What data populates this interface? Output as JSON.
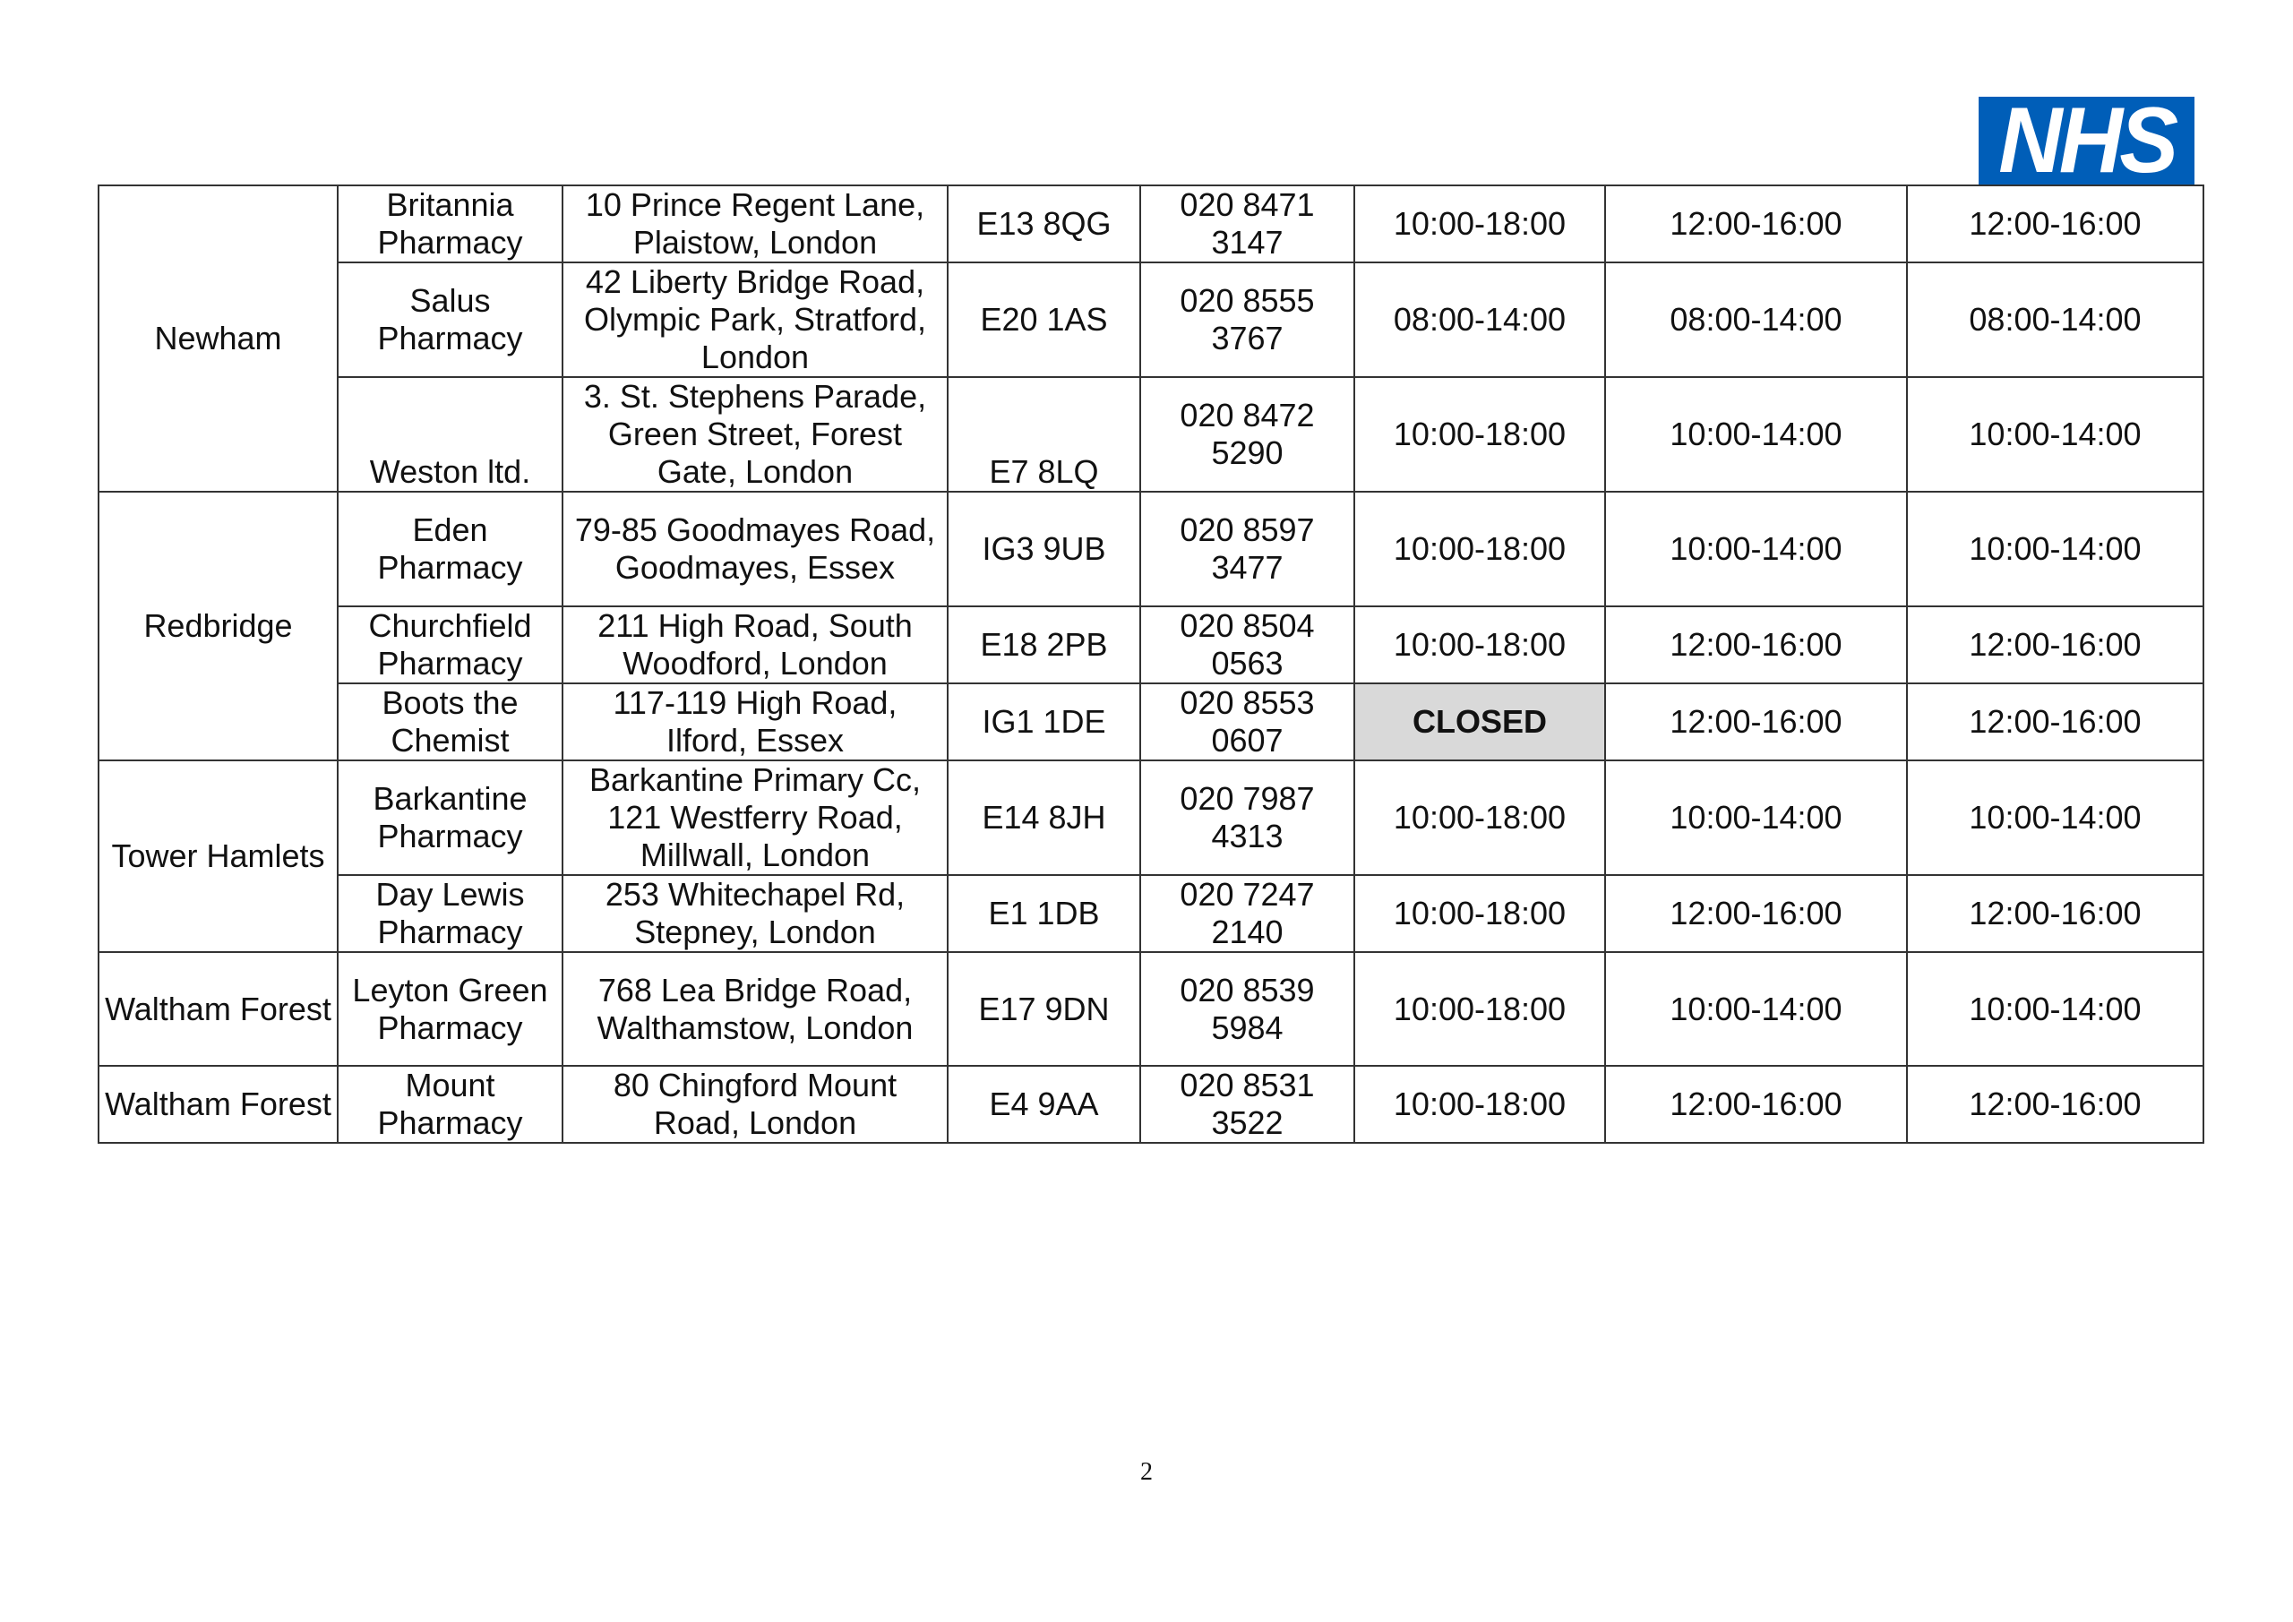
{
  "logo": {
    "text": "NHS",
    "color": "#005EB8"
  },
  "rows": [
    {
      "borough": "Newham",
      "name": "Britannia Pharmacy",
      "address": "10 Prince Regent Lane, Plaistow, London",
      "postcode": "E13 8QG",
      "phone": "020 8471 3147",
      "h1": "10:00-18:00",
      "h2": "12:00-16:00",
      "h3": "12:00-16:00"
    },
    {
      "name": "Salus Pharmacy",
      "address": "42 Liberty Bridge Road, Olympic Park, Stratford, London",
      "postcode": "E20 1AS",
      "phone": "020 8555 3767",
      "h1": "08:00-14:00",
      "h2": "08:00-14:00",
      "h3": "08:00-14:00"
    },
    {
      "name": "Weston ltd.",
      "address": "3. St. Stephens Parade, Green Street, Forest Gate, London",
      "postcode": "E7 8LQ",
      "phone": "020 8472 5290",
      "h1": "10:00-18:00",
      "h2": "10:00-14:00",
      "h3": "10:00-14:00"
    },
    {
      "borough": "Redbridge",
      "name": "Eden Pharmacy",
      "address": "79-85 Goodmayes Road, Goodmayes, Essex",
      "postcode": "IG3 9UB",
      "phone": "020 8597 3477",
      "h1": "10:00-18:00",
      "h2": "10:00-14:00",
      "h3": "10:00-14:00"
    },
    {
      "name": "Churchfield Pharmacy",
      "address": "211 High Road, South Woodford, London",
      "postcode": "E18 2PB",
      "phone": "020 8504 0563",
      "h1": "10:00-18:00",
      "h2": "12:00-16:00",
      "h3": "12:00-16:00"
    },
    {
      "name": "Boots the Chemist",
      "address": "117-119 High Road, Ilford, Essex",
      "postcode": "IG1 1DE",
      "phone": "020 8553 0607",
      "h1": "CLOSED",
      "h2": "12:00-16:00",
      "h3": "12:00-16:00"
    },
    {
      "borough": "Tower Hamlets",
      "name": "Barkantine Pharmacy",
      "address": "Barkantine Primary Cc, 121 Westferry Road, Millwall, London",
      "postcode": "E14 8JH",
      "phone": "020 7987 4313",
      "h1": "10:00-18:00",
      "h2": "10:00-14:00",
      "h3": "10:00-14:00"
    },
    {
      "name": "Day Lewis Pharmacy",
      "address": "253 Whitechapel Rd, Stepney, London",
      "postcode": "E1 1DB",
      "phone": "020 7247 2140",
      "h1": "10:00-18:00",
      "h2": "12:00-16:00",
      "h3": "12:00-16:00"
    },
    {
      "borough": "Waltham Forest",
      "name": "Leyton Green Pharmacy",
      "address": "768 Lea Bridge Road, Walthamstow, London",
      "postcode": "E17 9DN",
      "phone": "020 8539 5984",
      "h1": "10:00-18:00",
      "h2": "10:00-14:00",
      "h3": "10:00-14:00"
    },
    {
      "borough": "Waltham Forest",
      "name": "Mount Pharmacy",
      "address": "80 Chingford Mount Road, London",
      "postcode": "E4 9AA",
      "phone": "020 8531 3522",
      "h1": "10:00-18:00",
      "h2": "12:00-16:00",
      "h3": "12:00-16:00"
    }
  ],
  "page_number": "2"
}
